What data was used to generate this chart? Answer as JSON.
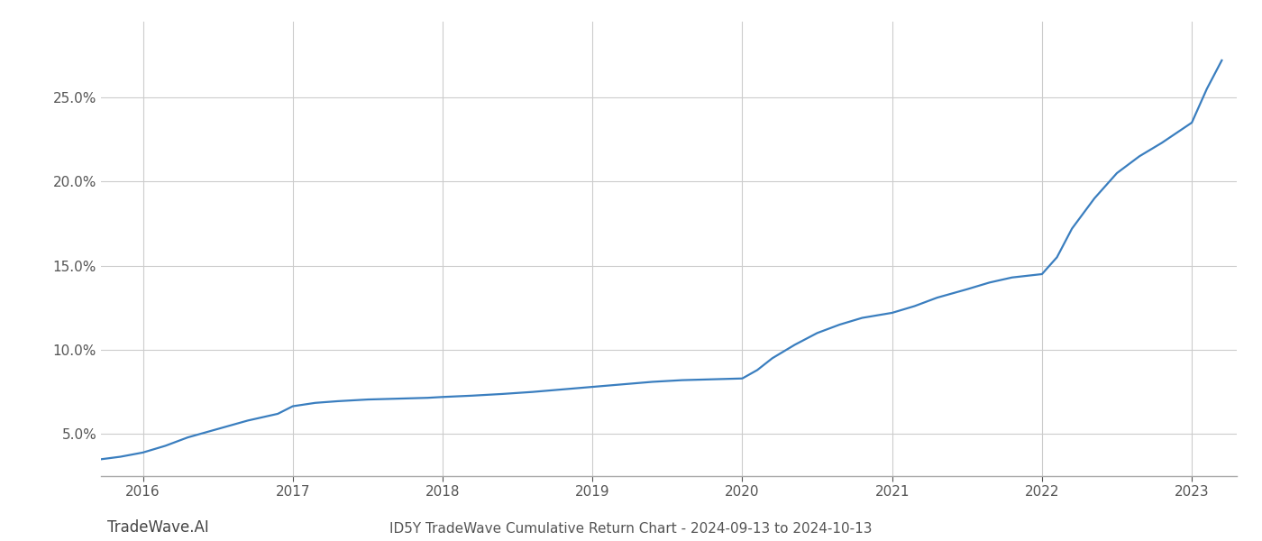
{
  "x_values": [
    2015.72,
    2015.85,
    2016.0,
    2016.15,
    2016.3,
    2016.5,
    2016.7,
    2016.9,
    2017.0,
    2017.15,
    2017.3,
    2017.5,
    2017.7,
    2017.9,
    2018.0,
    2018.2,
    2018.4,
    2018.6,
    2018.8,
    2019.0,
    2019.2,
    2019.4,
    2019.6,
    2019.8,
    2020.0,
    2020.1,
    2020.2,
    2020.35,
    2020.5,
    2020.65,
    2020.8,
    2021.0,
    2021.15,
    2021.3,
    2021.5,
    2021.65,
    2021.8,
    2022.0,
    2022.1,
    2022.2,
    2022.35,
    2022.5,
    2022.65,
    2022.8,
    2023.0,
    2023.1,
    2023.2
  ],
  "y_values": [
    3.5,
    3.65,
    3.9,
    4.3,
    4.8,
    5.3,
    5.8,
    6.2,
    6.65,
    6.85,
    6.95,
    7.05,
    7.1,
    7.15,
    7.2,
    7.28,
    7.38,
    7.5,
    7.65,
    7.8,
    7.95,
    8.1,
    8.2,
    8.25,
    8.3,
    8.8,
    9.5,
    10.3,
    11.0,
    11.5,
    11.9,
    12.2,
    12.6,
    13.1,
    13.6,
    14.0,
    14.3,
    14.5,
    15.5,
    17.2,
    19.0,
    20.5,
    21.5,
    22.3,
    23.5,
    25.5,
    27.2
  ],
  "line_color": "#3a7ebf",
  "line_width": 1.6,
  "grid_color": "#cccccc",
  "background_color": "#ffffff",
  "title": "ID5Y TradeWave Cumulative Return Chart - 2024-09-13 to 2024-10-13",
  "watermark": "TradeWave.AI",
  "xlim": [
    2015.72,
    2023.3
  ],
  "ylim": [
    2.5,
    29.5
  ],
  "yticks": [
    5.0,
    10.0,
    15.0,
    20.0,
    25.0
  ],
  "xticks": [
    2016,
    2017,
    2018,
    2019,
    2020,
    2021,
    2022,
    2023
  ],
  "title_fontsize": 11,
  "tick_fontsize": 11,
  "watermark_fontsize": 12
}
